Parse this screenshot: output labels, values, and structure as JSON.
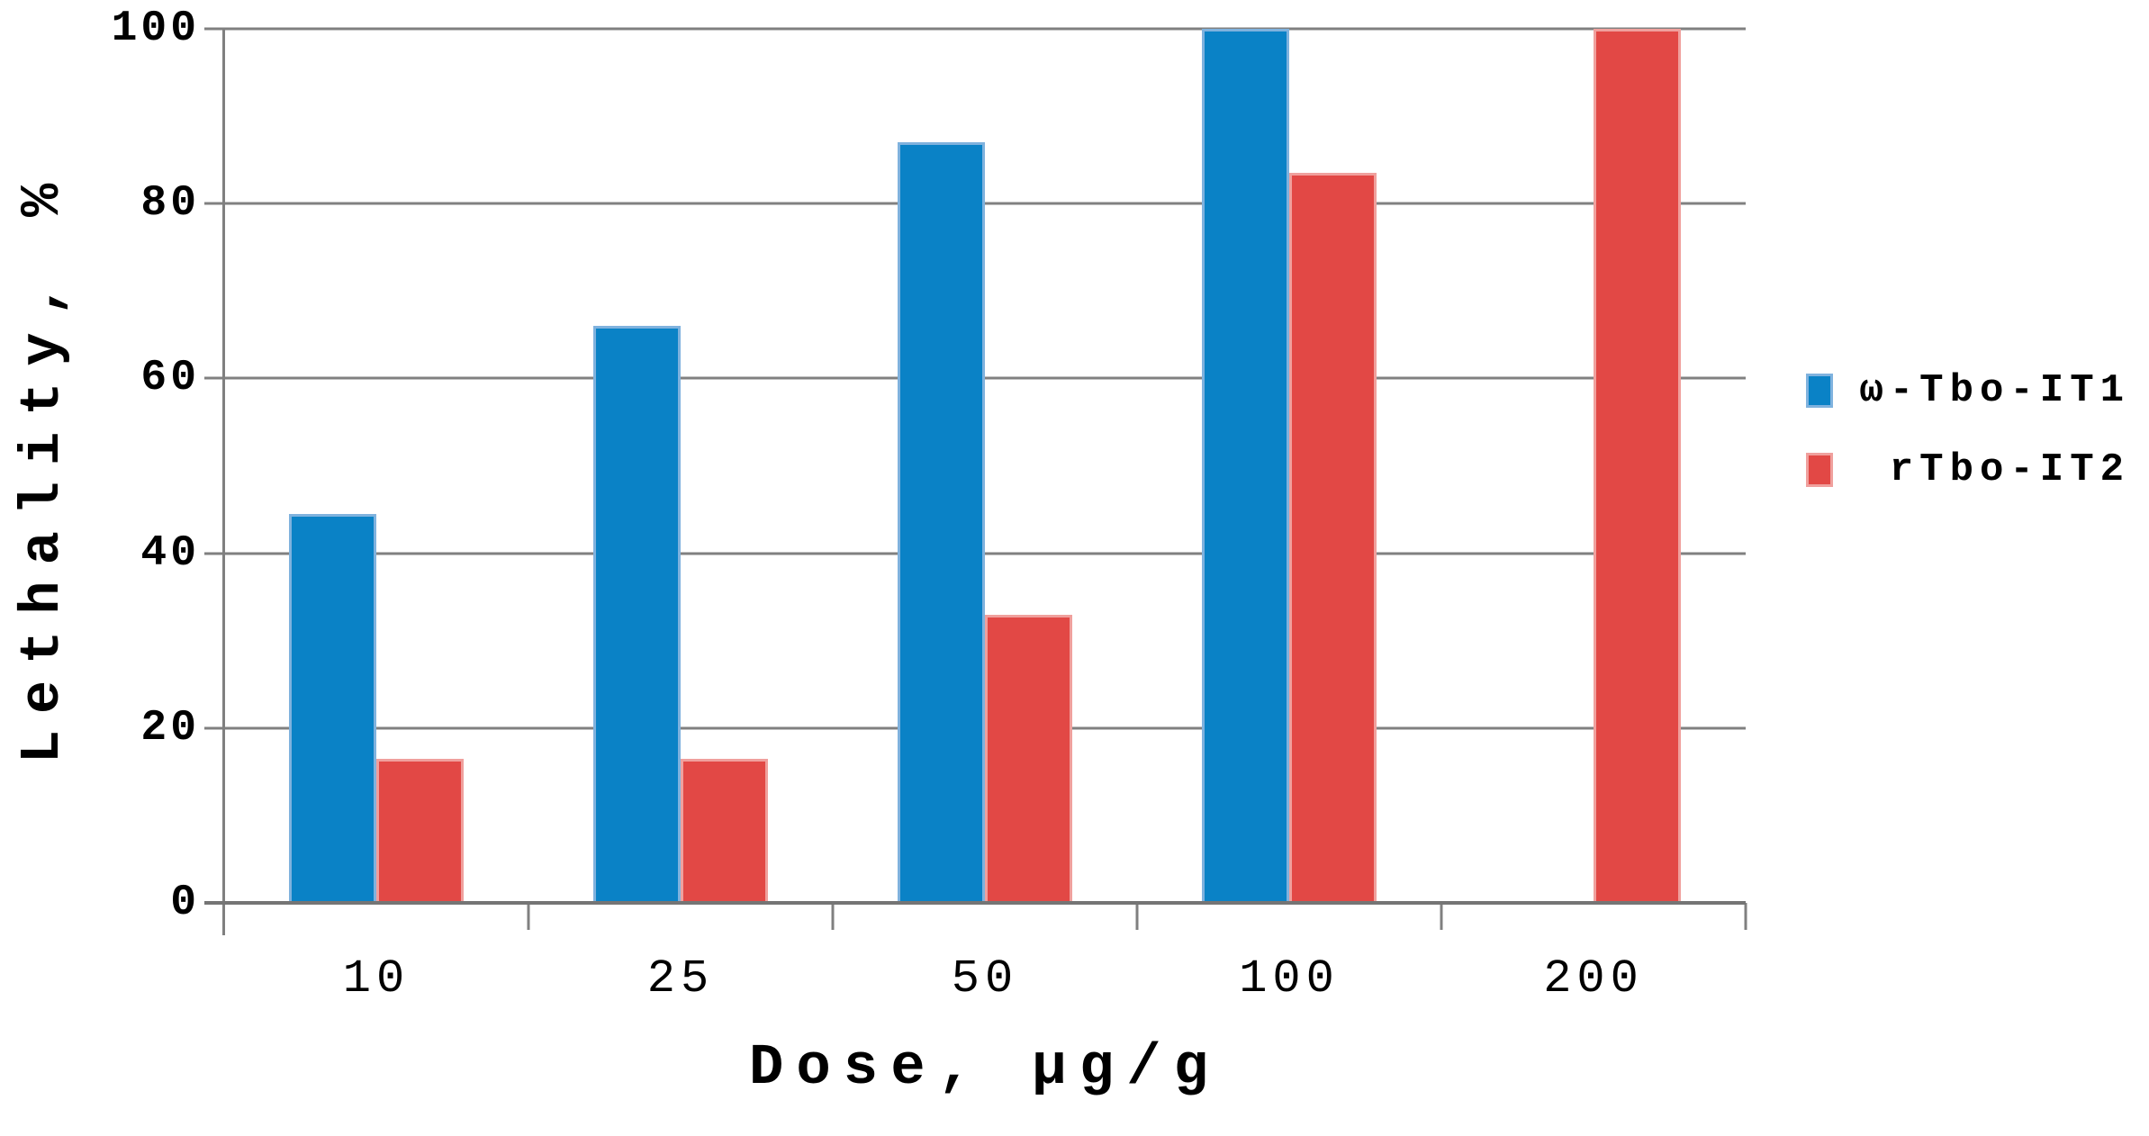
{
  "figure": {
    "background": "#ffffff",
    "text_color": "#000000",
    "gridline_color": "#808080"
  },
  "chart_data": {
    "type": "bar",
    "title": "",
    "xlabel": "Dose, µg/g",
    "ylabel": "Lethality, %",
    "categories": [
      "10",
      "25",
      "50",
      "100",
      "200"
    ],
    "series": [
      {
        "name": "ω-Tbo-IT1",
        "color": "#0a82c6",
        "border_color": "#7fb2de",
        "values": [
          44.5,
          66,
          87,
          100,
          0
        ]
      },
      {
        "name": "rTbo-IT2",
        "color": "#e24845",
        "border_color": "#f0a09d",
        "values": [
          16.5,
          16.5,
          33,
          83.5,
          100
        ]
      }
    ],
    "ylim": [
      0,
      100
    ],
    "yticks": [
      0,
      20,
      40,
      60,
      80,
      100
    ],
    "grid": true,
    "legend_position": "right"
  }
}
